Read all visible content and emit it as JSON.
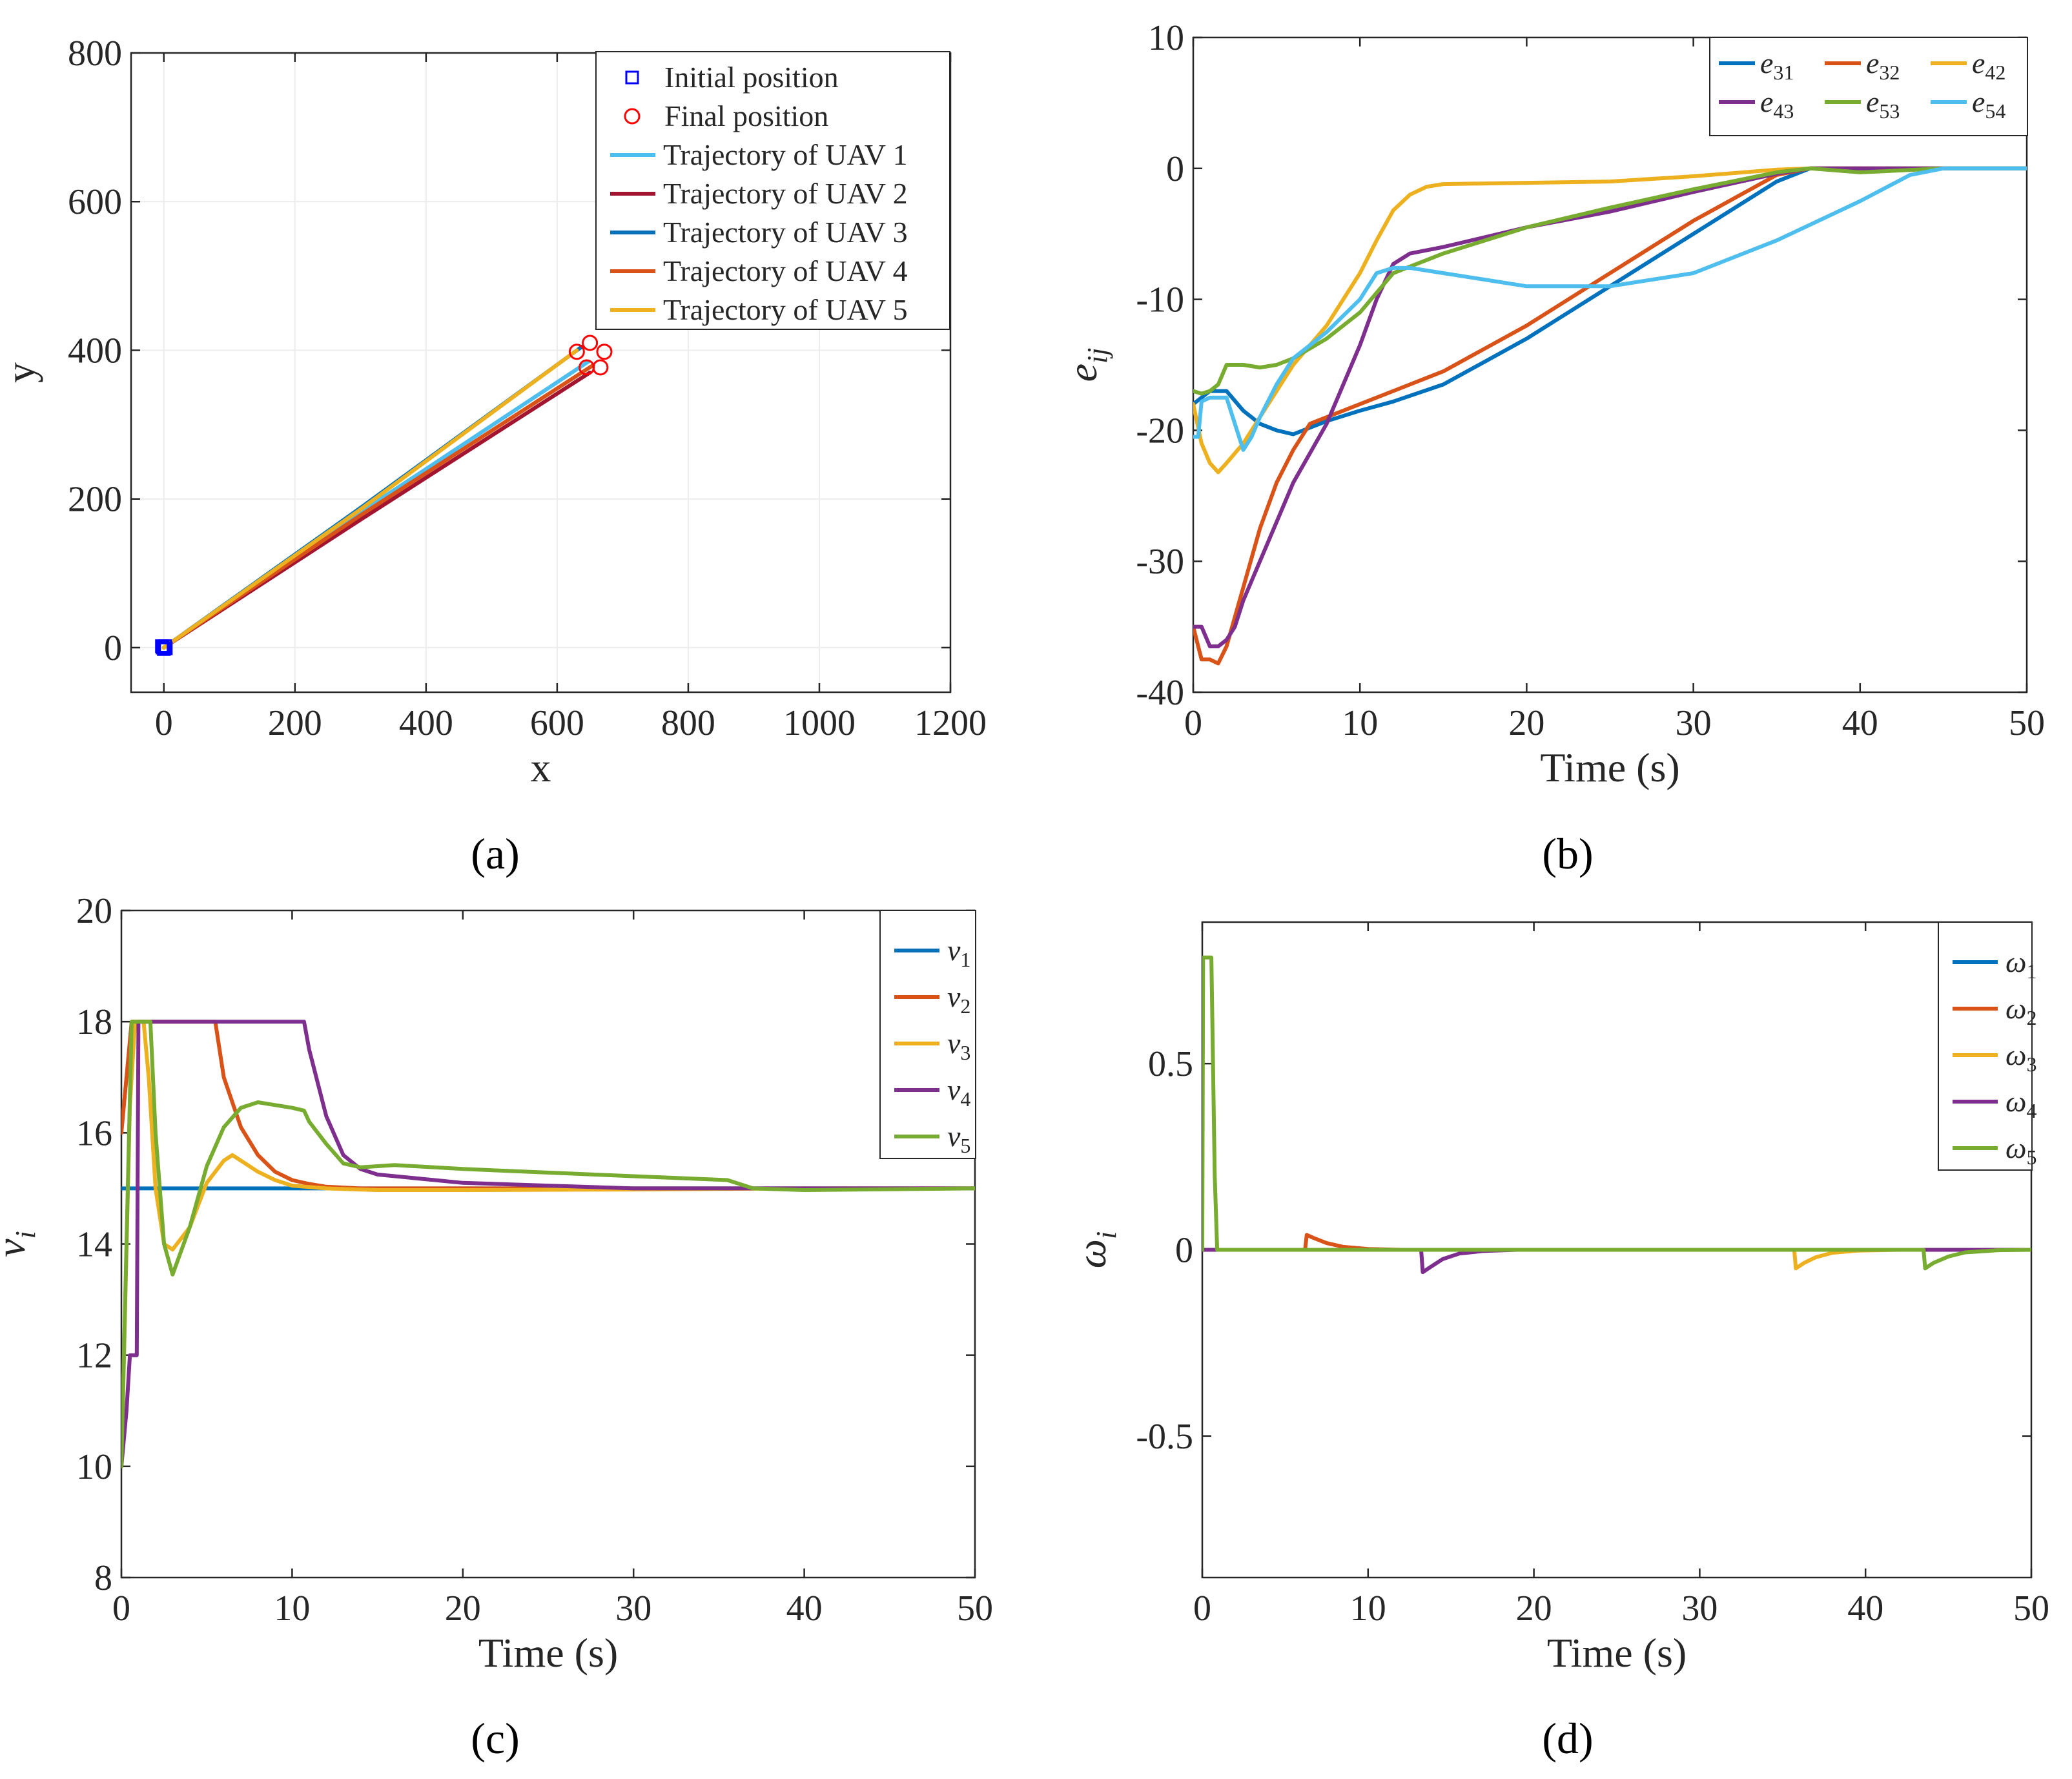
{
  "figure": {
    "panel_labels": [
      "(a)",
      "(b)",
      "(c)",
      "(d)"
    ]
  },
  "chart_data": [
    {
      "id": "a",
      "type": "line",
      "xlabel": "x",
      "ylabel": "y",
      "xlim": [
        -50,
        1200
      ],
      "ylim": [
        -60,
        800
      ],
      "xticks": [
        0,
        200,
        400,
        600,
        800,
        1000,
        1200
      ],
      "yticks": [
        0,
        200,
        400,
        600,
        800
      ],
      "grid": true,
      "legend_position": "top-right",
      "markers": [
        {
          "name": "Initial position",
          "shape": "square",
          "color": "#0000ff",
          "points": [
            [
              -2,
              0
            ],
            [
              0,
              -2
            ],
            [
              2,
              2
            ],
            [
              -3,
              2
            ],
            [
              3,
              -1
            ]
          ]
        },
        {
          "name": "Final position",
          "shape": "circle",
          "color": "#ff0000",
          "points": [
            [
              630,
              398
            ],
            [
              650,
              410
            ],
            [
              672,
              398
            ],
            [
              645,
              377
            ],
            [
              666,
              377
            ]
          ]
        }
      ],
      "series": [
        {
          "name": "Trajectory of UAV 1",
          "color": "#4dbeee",
          "x": [
            0,
            300,
            648
          ],
          "y": [
            0,
            182,
            385
          ]
        },
        {
          "name": "Trajectory of UAV 2",
          "color": "#a2142f",
          "x": [
            0,
            300,
            650
          ],
          "y": [
            0,
            172,
            370
          ]
        },
        {
          "name": "Trajectory of UAV 3",
          "color": "#0072bd",
          "x": [
            0,
            300,
            638
          ],
          "y": [
            0,
            188,
            405
          ]
        },
        {
          "name": "Trajectory of UAV 4",
          "color": "#d95319",
          "x": [
            0,
            300,
            655
          ],
          "y": [
            0,
            178,
            380
          ]
        },
        {
          "name": "Trajectory of UAV 5",
          "color": "#edb120",
          "x": [
            0,
            300,
            630
          ],
          "y": [
            0,
            186,
            400
          ]
        }
      ]
    },
    {
      "id": "b",
      "type": "line",
      "xlabel": "Time (s)",
      "ylabel": "e",
      "ylabel_sub": "ij",
      "xlim": [
        0,
        50
      ],
      "ylim": [
        -40,
        10
      ],
      "xticks": [
        0,
        10,
        20,
        30,
        40,
        50
      ],
      "yticks": [
        -40,
        -30,
        -20,
        -10,
        0,
        10
      ],
      "grid": false,
      "legend_position": "top-right",
      "series": [
        {
          "name": "e",
          "sub": "31",
          "color": "#0072bd",
          "x": [
            0,
            0.5,
            1,
            2,
            3,
            4,
            5,
            6,
            8,
            10,
            12,
            15,
            20,
            25,
            30,
            35,
            37,
            40,
            45,
            50
          ],
          "y": [
            -18,
            -17.5,
            -17,
            -17,
            -18.5,
            -19.5,
            -20,
            -20.3,
            -19.3,
            -18.5,
            -17.8,
            -16.5,
            -13,
            -9,
            -5,
            -1,
            0,
            0,
            0,
            0
          ]
        },
        {
          "name": "e",
          "sub": "32",
          "color": "#d95319",
          "x": [
            0,
            0.5,
            1,
            1.5,
            2,
            3,
            4,
            5,
            6,
            7,
            8,
            10,
            15,
            20,
            25,
            30,
            35,
            37,
            40,
            45,
            50
          ],
          "y": [
            -35,
            -37.5,
            -37.5,
            -37.8,
            -36.5,
            -32,
            -27.5,
            -24,
            -21.5,
            -19.5,
            -19,
            -18,
            -15.5,
            -12,
            -8,
            -4,
            -0.5,
            0,
            0,
            0,
            0
          ]
        },
        {
          "name": "e",
          "sub": "42",
          "color": "#edb120",
          "x": [
            0,
            0.5,
            1,
            1.5,
            2,
            3,
            4,
            6,
            8,
            10,
            11,
            12,
            13,
            14,
            15,
            20,
            25,
            30,
            35,
            37,
            40,
            45,
            50
          ],
          "y": [
            -18,
            -21,
            -22.5,
            -23.2,
            -22.5,
            -21,
            -19,
            -15,
            -12,
            -8,
            -5.5,
            -3.2,
            -2,
            -1.4,
            -1.2,
            -1.1,
            -1,
            -0.6,
            -0.1,
            0,
            0,
            0,
            0
          ]
        },
        {
          "name": "e",
          "sub": "43",
          "color": "#7e2f8e",
          "x": [
            0,
            0.5,
            1,
            1.5,
            2,
            2.5,
            3,
            4,
            5,
            6,
            8,
            10,
            11,
            12,
            13,
            15,
            20,
            25,
            30,
            35,
            37,
            40,
            45,
            50
          ],
          "y": [
            -35,
            -35,
            -36.5,
            -36.5,
            -36,
            -35,
            -33,
            -30,
            -27,
            -24,
            -19.5,
            -13.5,
            -10,
            -7.3,
            -6.5,
            -6,
            -4.5,
            -3.3,
            -1.8,
            -0.4,
            0,
            0,
            0,
            0
          ]
        },
        {
          "name": "e",
          "sub": "53",
          "color": "#77ac30",
          "x": [
            0,
            0.5,
            1,
            1.5,
            2,
            3,
            4,
            5,
            6,
            8,
            10,
            12,
            15,
            20,
            25,
            30,
            35,
            37,
            40,
            45,
            50
          ],
          "y": [
            -17,
            -17.2,
            -17,
            -16.5,
            -15,
            -15,
            -15.2,
            -15,
            -14.5,
            -13,
            -11,
            -8,
            -6.5,
            -4.5,
            -3,
            -1.6,
            -0.3,
            0,
            -0.3,
            0,
            0
          ]
        },
        {
          "name": "e",
          "sub": "54",
          "color": "#4dbeee",
          "x": [
            0,
            0.3,
            0.5,
            1,
            2,
            2.5,
            3,
            3.5,
            4,
            5,
            6,
            8,
            10,
            11,
            12,
            13,
            15,
            20,
            25,
            30,
            35,
            40,
            43,
            45,
            50
          ],
          "y": [
            -20.5,
            -20.5,
            -17.8,
            -17.5,
            -17.5,
            -19.5,
            -21.5,
            -20.5,
            -19,
            -16.5,
            -14.5,
            -12.5,
            -10,
            -8,
            -7.6,
            -7.6,
            -8,
            -9,
            -9,
            -8,
            -5.5,
            -2.5,
            -0.5,
            0,
            0
          ]
        }
      ]
    },
    {
      "id": "c",
      "type": "line",
      "xlabel": "Time (s)",
      "ylabel": "v",
      "ylabel_sub": "i",
      "xlim": [
        0,
        50
      ],
      "ylim": [
        8,
        20
      ],
      "xticks": [
        0,
        10,
        20,
        30,
        40,
        50
      ],
      "yticks": [
        8,
        10,
        12,
        14,
        16,
        18,
        20
      ],
      "grid": false,
      "legend_position": "top-right",
      "series": [
        {
          "name": "v",
          "sub": "1",
          "color": "#0072bd",
          "x": [
            0,
            50
          ],
          "y": [
            15,
            15
          ]
        },
        {
          "name": "v",
          "sub": "2",
          "color": "#d95319",
          "x": [
            0,
            0.3,
            0.6,
            5.5,
            6,
            7,
            8,
            9,
            10,
            11,
            12,
            14,
            20,
            50
          ],
          "y": [
            16,
            17,
            18,
            18,
            17,
            16.1,
            15.6,
            15.3,
            15.15,
            15.08,
            15.03,
            15,
            15,
            15
          ]
        },
        {
          "name": "v",
          "sub": "3",
          "color": "#edb120",
          "x": [
            0,
            0.5,
            0.8,
            1.3,
            1.6,
            2,
            2.5,
            3,
            4,
            5,
            6,
            6.5,
            7,
            8,
            9,
            10,
            12,
            15,
            20,
            30,
            40,
            50
          ],
          "y": [
            10,
            16.5,
            18,
            18,
            17,
            15,
            14,
            13.9,
            14.3,
            15.1,
            15.5,
            15.6,
            15.5,
            15.3,
            15.15,
            15.05,
            15,
            14.97,
            14.97,
            14.98,
            15,
            15
          ]
        },
        {
          "name": "v",
          "sub": "4",
          "color": "#7e2f8e",
          "x": [
            0,
            0.3,
            0.5,
            0.6,
            0.8,
            0.9,
            1,
            10.7,
            11,
            12,
            13,
            14,
            15,
            20,
            25,
            30,
            35,
            40,
            50
          ],
          "y": [
            10,
            11,
            12,
            12,
            12,
            12,
            18,
            18,
            17.5,
            16.3,
            15.6,
            15.35,
            15.25,
            15.1,
            15.05,
            15,
            15,
            15,
            15
          ]
        },
        {
          "name": "v",
          "sub": "5",
          "color": "#77ac30",
          "x": [
            0,
            0.3,
            0.6,
            1.7,
            2,
            2.5,
            3,
            4,
            5,
            6,
            7,
            8,
            9,
            10,
            10.7,
            11,
            12,
            13,
            14,
            16,
            20,
            30,
            35.5,
            37,
            40,
            50
          ],
          "y": [
            10,
            14,
            18,
            18,
            16,
            14,
            13.45,
            14.3,
            15.4,
            16.1,
            16.45,
            16.55,
            16.5,
            16.45,
            16.4,
            16.2,
            15.8,
            15.45,
            15.38,
            15.42,
            15.35,
            15.22,
            15.15,
            15,
            14.97,
            15
          ]
        }
      ]
    },
    {
      "id": "d",
      "type": "line",
      "xlabel": "Time (s)",
      "ylabel": "ω",
      "ylabel_sub": "i",
      "xlim": [
        0,
        50
      ],
      "ylim": [
        -0.88,
        0.88
      ],
      "xticks": [
        0,
        10,
        20,
        30,
        40,
        50
      ],
      "yticks": [
        -0.5,
        0,
        0.5
      ],
      "grid": false,
      "legend_position": "top-right",
      "series": [
        {
          "name": "ω",
          "sub": "1",
          "color": "#0072bd",
          "x": [
            0,
            50
          ],
          "y": [
            0,
            0
          ]
        },
        {
          "name": "ω",
          "sub": "2",
          "color": "#d95319",
          "x": [
            0,
            6.2,
            6.3,
            6.7,
            7.5,
            8.5,
            10,
            12,
            50
          ],
          "y": [
            0,
            0,
            0.04,
            0.032,
            0.018,
            0.008,
            0.002,
            0,
            0
          ]
        },
        {
          "name": "ω",
          "sub": "3",
          "color": "#edb120",
          "x": [
            0,
            35.7,
            35.8,
            36.3,
            37,
            38,
            39.5,
            42,
            50
          ],
          "y": [
            0,
            0,
            -0.05,
            -0.035,
            -0.02,
            -0.008,
            -0.002,
            0,
            0
          ]
        },
        {
          "name": "ω",
          "sub": "4",
          "color": "#7e2f8e",
          "x": [
            0,
            13.2,
            13.3,
            13.8,
            14.5,
            15.5,
            17,
            19,
            50
          ],
          "y": [
            0,
            0,
            -0.06,
            -0.045,
            -0.025,
            -0.01,
            -0.003,
            0,
            0
          ]
        },
        {
          "name": "ω",
          "sub": "5",
          "color": "#77ac30",
          "x": [
            0,
            0.05,
            0.55,
            0.75,
            0.9,
            43.5,
            43.6,
            44.1,
            45,
            46,
            48,
            50
          ],
          "y": [
            0,
            0.785,
            0.785,
            0.2,
            0,
            0,
            -0.05,
            -0.035,
            -0.018,
            -0.007,
            -0.001,
            0
          ]
        }
      ]
    }
  ]
}
